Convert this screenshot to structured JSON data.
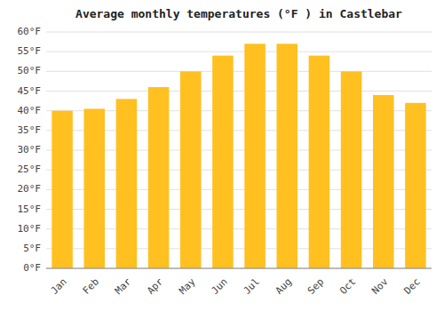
{
  "chart_data": {
    "type": "bar",
    "title": "Average monthly temperatures (°F ) in Castlebar",
    "categories": [
      "Jan",
      "Feb",
      "Mar",
      "Apr",
      "May",
      "Jun",
      "Jul",
      "Aug",
      "Sep",
      "Oct",
      "Nov",
      "Dec"
    ],
    "values": [
      40,
      40.5,
      43,
      46,
      50,
      54,
      57,
      57,
      54,
      50,
      44,
      42
    ],
    "color": "#FFC020",
    "ylim": [
      0,
      60
    ],
    "yticks": [
      {
        "value": 0,
        "label": "0°F"
      },
      {
        "value": 5,
        "label": "5°F"
      },
      {
        "value": 10,
        "label": "10°F"
      },
      {
        "value": 15,
        "label": "15°F"
      },
      {
        "value": 20,
        "label": "20°F"
      },
      {
        "value": 25,
        "label": "25°F"
      },
      {
        "value": 30,
        "label": "30°F"
      },
      {
        "value": 35,
        "label": "35°F"
      },
      {
        "value": 40,
        "label": "40°F"
      },
      {
        "value": 45,
        "label": "45°F"
      },
      {
        "value": 50,
        "label": "50°F"
      },
      {
        "value": 55,
        "label": "55°F"
      },
      {
        "value": 60,
        "label": "60°F"
      }
    ],
    "grid": true
  }
}
